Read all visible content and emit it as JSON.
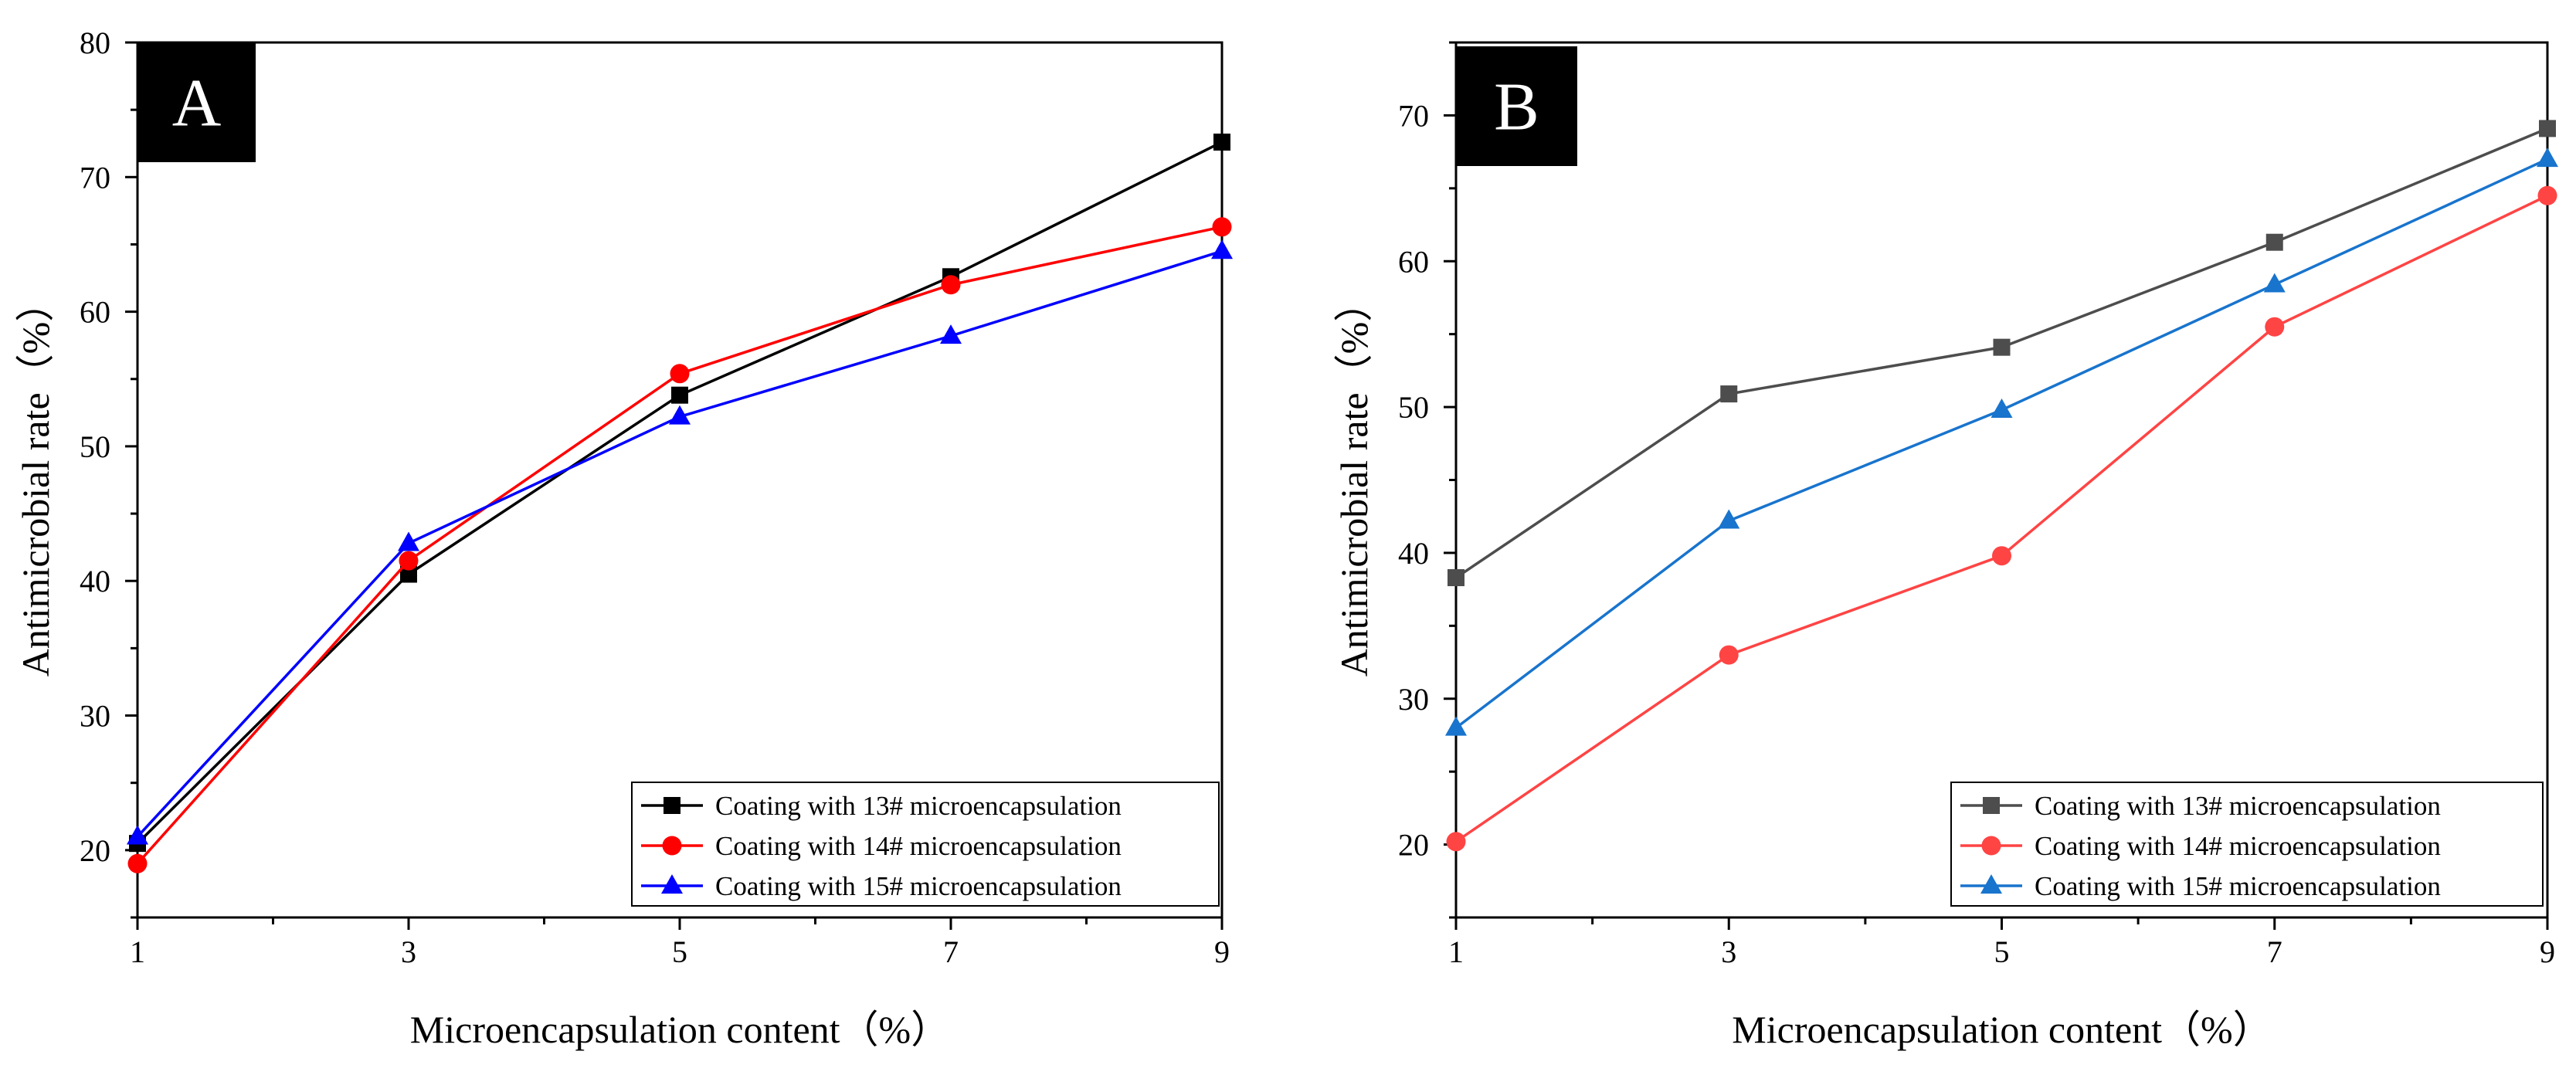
{
  "chart_data": [
    {
      "type": "line",
      "panel_label": "A",
      "title": "",
      "xlabel": "Microencapsulation content（%）",
      "ylabel": "Antimicrobial rate（%）",
      "xlim": [
        1,
        9
      ],
      "ylim": [
        15,
        80
      ],
      "xticks": [
        1,
        3,
        5,
        7,
        9
      ],
      "yticks": [
        20,
        30,
        40,
        50,
        60,
        70,
        80
      ],
      "grid": false,
      "legend_position": "bottom-right",
      "x": [
        1,
        3,
        5,
        7,
        9
      ],
      "series": [
        {
          "name": "Coating with 13# microencapsulation",
          "color": "#000000",
          "marker": "square",
          "values": [
            20.5,
            40.5,
            53.8,
            62.6,
            72.6
          ]
        },
        {
          "name": "Coating with 14# microencapsulation",
          "color": "#ff0000",
          "marker": "circle",
          "values": [
            19.0,
            41.5,
            55.4,
            62.0,
            66.3
          ]
        },
        {
          "name": "Coating with 15# microencapsulation",
          "color": "#0000ff",
          "marker": "triangle",
          "values": [
            21.0,
            42.8,
            52.2,
            58.2,
            64.5
          ]
        }
      ]
    },
    {
      "type": "line",
      "panel_label": "B",
      "title": "",
      "xlabel": "Microencapsulation content（%）",
      "ylabel": "Antimicrobial rate（%）",
      "xlim": [
        1,
        9
      ],
      "ylim": [
        15,
        75
      ],
      "xticks": [
        1,
        3,
        5,
        7,
        9
      ],
      "yticks": [
        20,
        30,
        40,
        50,
        60,
        70
      ],
      "grid": false,
      "legend_position": "bottom-right",
      "x": [
        1,
        3,
        5,
        7,
        9
      ],
      "series": [
        {
          "name": "Coating with 13# microencapsulation",
          "color": "#4d4d4d",
          "marker": "square",
          "values": [
            38.3,
            50.9,
            54.1,
            61.3,
            69.1
          ]
        },
        {
          "name": "Coating with 14# microencapsulation",
          "color": "#ff4444",
          "marker": "circle",
          "values": [
            20.2,
            33.0,
            39.8,
            55.5,
            64.5
          ]
        },
        {
          "name": "Coating with 15# microencapsulation",
          "color": "#1874cd",
          "marker": "triangle",
          "values": [
            28.0,
            42.2,
            49.8,
            58.4,
            67.0
          ]
        }
      ]
    }
  ]
}
